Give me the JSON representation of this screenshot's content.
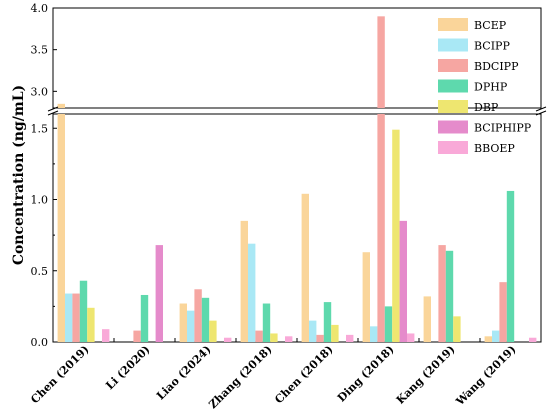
{
  "chart_data": {
    "type": "bar",
    "ylabel": "Concentration (ng/mL)",
    "xlabel": "",
    "y_axis_break": {
      "from": 1.6,
      "to": 2.8
    },
    "ylim_lower": [
      0,
      1.6
    ],
    "ylim_upper": [
      2.8,
      4.0
    ],
    "yticks_lower": [
      "0.0",
      "0.5",
      "1.0",
      "1.5"
    ],
    "yticks_upper": [
      "3.0",
      "3.5",
      "4.0"
    ],
    "legend_position": "top-right",
    "categories": [
      "Chen (2019)",
      "Li (2020)",
      "Liao (2024)",
      "Zhang (2018)",
      "Chen (2018)",
      "Ding (2018)",
      "Kang (2019)",
      "Wang (2019)"
    ],
    "series": [
      {
        "name": "BCEP",
        "color": "#FAD59A",
        "values": [
          2.85,
          0,
          0.27,
          0.85,
          1.04,
          0.63,
          0.32,
          0.04
        ]
      },
      {
        "name": "BCIPP",
        "color": "#A9E8F5",
        "values": [
          0.34,
          0,
          0.22,
          0.69,
          0.15,
          0.11,
          0,
          0.08
        ]
      },
      {
        "name": "BDCIPP",
        "color": "#F6A6A2",
        "values": [
          0.34,
          0.08,
          0.37,
          0.08,
          0.05,
          3.9,
          0.68,
          0.42
        ]
      },
      {
        "name": "DPHP",
        "color": "#5ED9AD",
        "values": [
          0.43,
          0.33,
          0.31,
          0.27,
          0.28,
          0.25,
          0.64,
          1.06
        ]
      },
      {
        "name": "DBP",
        "color": "#EEE670",
        "values": [
          0.24,
          0,
          0.15,
          0.06,
          0.12,
          1.49,
          0.18,
          0
        ]
      },
      {
        "name": "BCIPHIPP",
        "color": "#E58BCB",
        "values": [
          0,
          0.68,
          0,
          0,
          0,
          0.85,
          0,
          0
        ]
      },
      {
        "name": "BBOEP",
        "color": "#F9A9D8",
        "values": [
          0.09,
          0,
          0.03,
          0.04,
          0.05,
          0.06,
          0,
          0.03
        ]
      }
    ]
  }
}
